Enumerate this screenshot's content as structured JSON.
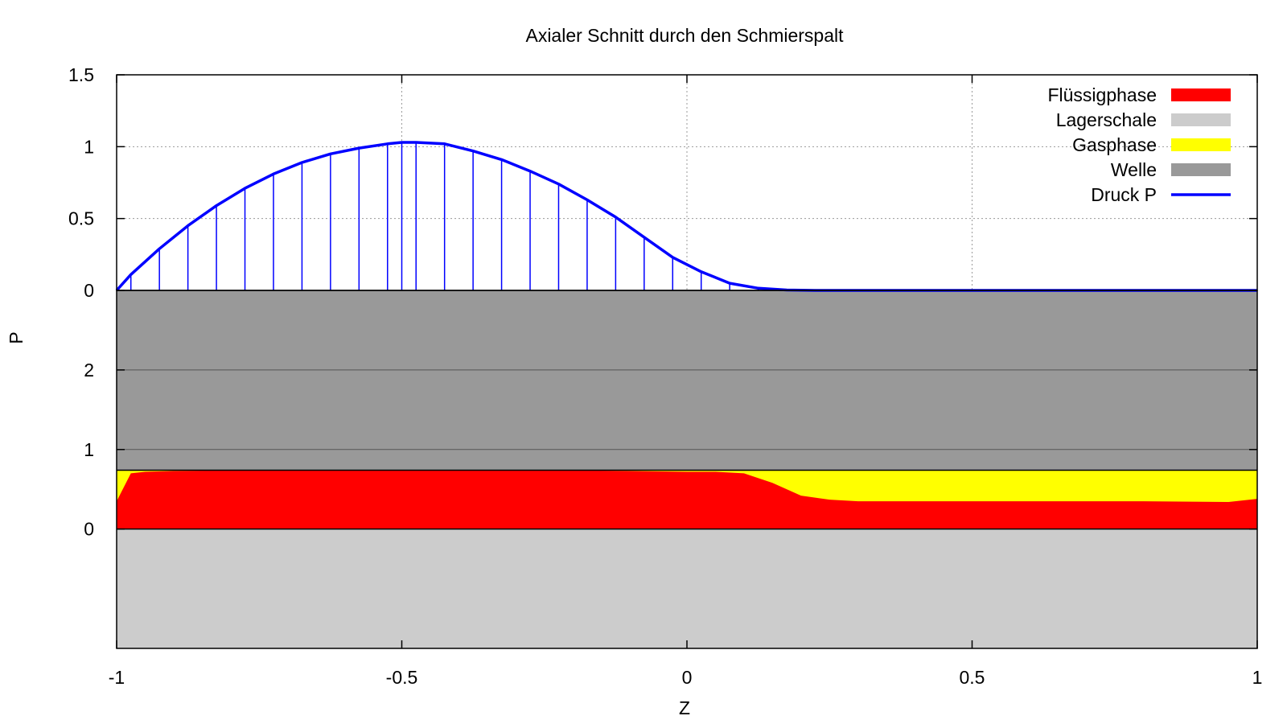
{
  "chart_data": {
    "type": "area",
    "title": "Axialer Schnitt durch den Schmierspalt",
    "xlabel": "Z",
    "ylabel": "P",
    "xlim": [
      -1,
      1
    ],
    "x_ticks": [
      "-1",
      "-0.5",
      "0",
      "0.5",
      "1"
    ],
    "x_tick_values": [
      -1,
      -0.5,
      0,
      0.5,
      1
    ],
    "grid": true,
    "legend_position": "top-right",
    "pressure_panel": {
      "ylim": [
        0,
        1.5
      ],
      "y_ticks": [
        "0",
        "0.5",
        "1",
        "1.5"
      ],
      "y_tick_values": [
        0,
        0.5,
        1,
        1.5
      ]
    },
    "gap_panel": {
      "ylim": [
        -1.5,
        3
      ],
      "y_ticks": [
        "0",
        "1",
        "2"
      ],
      "y_tick_values": [
        0,
        1,
        2
      ]
    },
    "colors": {
      "fluessigphase": "#ff0000",
      "lagerschale": "#cccccc",
      "gasphase": "#ffff00",
      "welle": "#999999",
      "druck": "#0000ff"
    },
    "series": [
      {
        "name": "Flüssigphase",
        "key": "fluessigphase",
        "x": [
          -1,
          -0.975,
          -0.95,
          -0.9,
          -0.8,
          -0.6,
          -0.4,
          -0.2,
          0,
          0.05,
          0.1,
          0.15,
          0.2,
          0.25,
          0.3,
          0.5,
          0.8,
          0.95,
          1
        ],
        "values": [
          0.35,
          0.7,
          0.72,
          0.73,
          0.74,
          0.74,
          0.74,
          0.74,
          0.72,
          0.72,
          0.7,
          0.58,
          0.42,
          0.37,
          0.35,
          0.35,
          0.35,
          0.34,
          0.38
        ]
      },
      {
        "name": "Lagerschale",
        "key": "lagerschale",
        "x": [
          -1,
          1
        ],
        "values": [
          -1.5,
          -1.5
        ]
      },
      {
        "name": "Gasphase",
        "key": "gasphase",
        "x": [
          -1,
          1
        ],
        "values": [
          0.74,
          0.74
        ]
      },
      {
        "name": "Welle",
        "key": "welle",
        "x": [
          -1,
          1
        ],
        "values": [
          3,
          3
        ]
      },
      {
        "name": "Druck P",
        "key": "druck",
        "x": [
          -1,
          -0.975,
          -0.925,
          -0.875,
          -0.825,
          -0.775,
          -0.725,
          -0.675,
          -0.625,
          -0.575,
          -0.525,
          -0.5,
          -0.475,
          -0.425,
          -0.375,
          -0.325,
          -0.275,
          -0.225,
          -0.175,
          -0.125,
          -0.075,
          -0.025,
          0.025,
          0.075,
          0.125,
          0.175,
          0.225,
          0.3,
          0.5,
          0.7,
          1
        ],
        "values": [
          0,
          0.11,
          0.29,
          0.45,
          0.59,
          0.71,
          0.81,
          0.89,
          0.95,
          0.99,
          1.02,
          1.03,
          1.03,
          1.02,
          0.97,
          0.91,
          0.83,
          0.74,
          0.63,
          0.51,
          0.37,
          0.23,
          0.13,
          0.05,
          0.015,
          0.003,
          0,
          0,
          0,
          0,
          0
        ]
      }
    ]
  }
}
